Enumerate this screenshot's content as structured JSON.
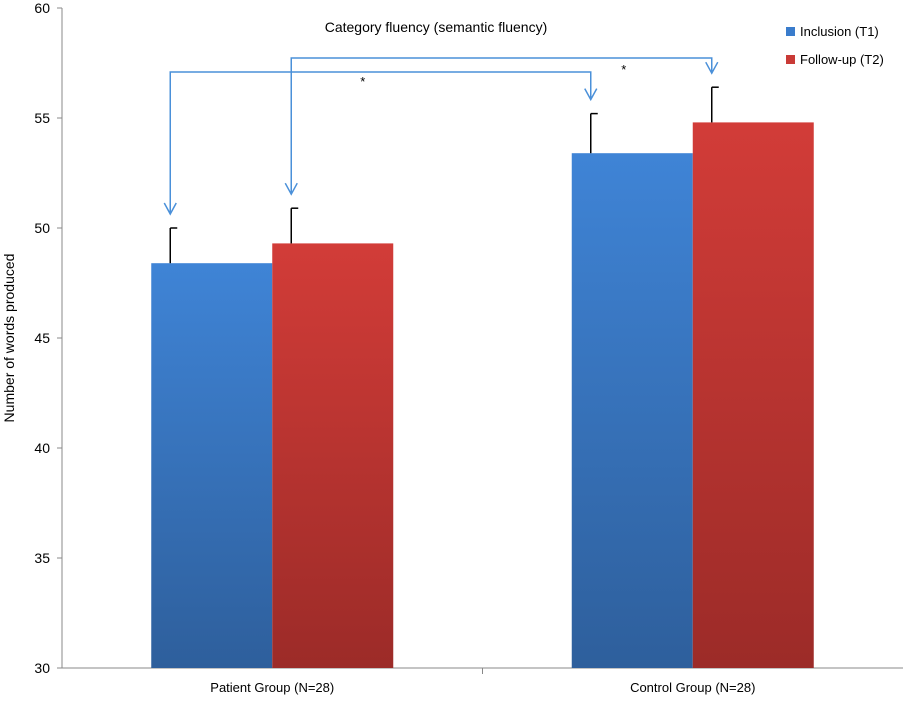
{
  "chart_data": {
    "type": "bar",
    "title": "Category fluency (semantic fluency)",
    "xlabel": "",
    "ylabel": "Number of words produced",
    "ylim": [
      30,
      60
    ],
    "yticks": [
      30,
      35,
      40,
      45,
      50,
      55,
      60
    ],
    "grid": false,
    "legend_position": "top-right",
    "categories": [
      "Patient Group (N=28)",
      "Control Group (N=28)"
    ],
    "series": [
      {
        "name": "Inclusion (T1)",
        "color": "#3a7ccc",
        "values": [
          48.4,
          53.4
        ],
        "error": [
          1.6,
          1.8
        ]
      },
      {
        "name": "Follow-up (T2)",
        "color": "#c93a36",
        "values": [
          49.3,
          54.8
        ],
        "error": [
          1.6,
          1.6
        ]
      }
    ],
    "annotations": [
      {
        "text": "*",
        "from": "Patient Group (N=28) / Inclusion (T1)",
        "to": "Control Group (N=28) / Inclusion (T1)"
      },
      {
        "text": "*",
        "from": "Patient Group (N=28) / Follow-up (T2)",
        "to": "Control Group (N=28) / Follow-up (T2)"
      }
    ],
    "annotation_color": "#4a90d9"
  }
}
